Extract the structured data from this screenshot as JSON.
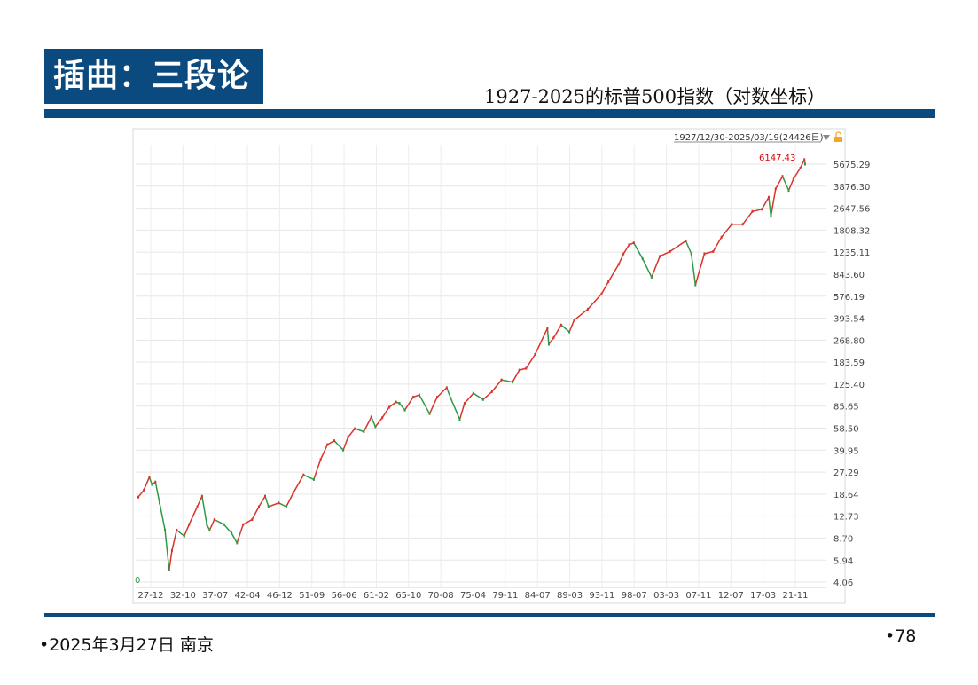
{
  "slide": {
    "title": "插曲：三段论",
    "subtitle": "1927-2025的标普500指数（对数坐标）",
    "footer_date": "•2025年3月27日 南京",
    "page_number": "•78"
  },
  "chart_data": {
    "type": "line",
    "scale": "log",
    "range_label": "1927/12/30-2025/03/19(24426日)",
    "last_value_label": "6147.43",
    "low_label": "0",
    "y_ticks": [
      "5675.29",
      "3876.30",
      "2647.56",
      "1808.32",
      "1235.11",
      "843.60",
      "576.19",
      "393.54",
      "268.80",
      "183.59",
      "125.40",
      "85.65",
      "58.50",
      "39.95",
      "27.29",
      "18.64",
      "12.73",
      "8.70",
      "5.94",
      "4.06"
    ],
    "x_ticks": [
      "27-12",
      "32-10",
      "37-07",
      "42-04",
      "46-12",
      "51-09",
      "56-06",
      "61-02",
      "65-10",
      "70-08",
      "75-04",
      "79-11",
      "84-07",
      "89-03",
      "93-11",
      "98-07",
      "03-03",
      "07-11",
      "12-07",
      "17-03",
      "21-11"
    ],
    "ylim": [
      4.06,
      5675.29
    ],
    "grid": true,
    "colors": {
      "up": "#d9342b",
      "down": "#2e9a45",
      "last_label": "#e00000"
    },
    "series": [
      {
        "x": [
          1927.9,
          1928.7,
          1929.5,
          1929.9,
          1930.4,
          1931.0,
          1931.8,
          1932.4,
          1932.8,
          1933.5,
          1934.6,
          1935.3,
          1936.5,
          1937.2,
          1937.9,
          1938.3,
          1939.0,
          1940.4,
          1941.5,
          1942.3,
          1943.2,
          1944.5,
          1945.5,
          1946.4,
          1946.9,
          1948.4,
          1949.5,
          1950.5,
          1952.0,
          1953.5,
          1954.5,
          1955.5,
          1956.5,
          1957.8,
          1958.5,
          1959.5,
          1960.8,
          1961.9,
          1962.5,
          1963.5,
          1964.5,
          1965.5,
          1966.0,
          1966.8,
          1968.0,
          1968.9,
          1970.4,
          1971.5,
          1972.9,
          1973.5,
          1974.8,
          1975.5,
          1976.8,
          1978.2,
          1979.5,
          1980.9,
          1982.5,
          1983.5,
          1984.5,
          1985.8,
          1987.6,
          1987.8,
          1988.5,
          1989.6,
          1990.8,
          1991.5,
          1993.5,
          1995.5,
          1996.5,
          1998.0,
          1998.7,
          1999.5,
          2000.2,
          2001.5,
          2002.8,
          2004.0,
          2005.5,
          2007.8,
          2008.6,
          2009.2,
          2010.5,
          2011.8,
          2013.0,
          2014.5,
          2016.1,
          2017.5,
          2018.9,
          2019.9,
          2020.2,
          2020.9,
          2021.9,
          2022.8,
          2023.5,
          2024.5,
          2025.1,
          2025.2
        ],
        "y": [
          17.7,
          20,
          25,
          22,
          23,
          16,
          10,
          5,
          7,
          10,
          9,
          11,
          15,
          18,
          11,
          10,
          12,
          11,
          9.5,
          8,
          11,
          12,
          15,
          18,
          15,
          16,
          15,
          19,
          26,
          24,
          34,
          44,
          47,
          40,
          50,
          58,
          55,
          71,
          60,
          70,
          84,
          92,
          90,
          80,
          100,
          104,
          75,
          100,
          118,
          98,
          68,
          90,
          107,
          96,
          110,
          135,
          130,
          160,
          165,
          210,
          330,
          250,
          280,
          350,
          310,
          380,
          460,
          600,
          740,
          1000,
          1200,
          1400,
          1450,
          1100,
          800,
          1150,
          1250,
          1500,
          1200,
          700,
          1200,
          1250,
          1600,
          2000,
          2000,
          2500,
          2600,
          3200,
          2300,
          3700,
          4600,
          3600,
          4400,
          5300,
          6147,
          5675
        ]
      }
    ]
  }
}
